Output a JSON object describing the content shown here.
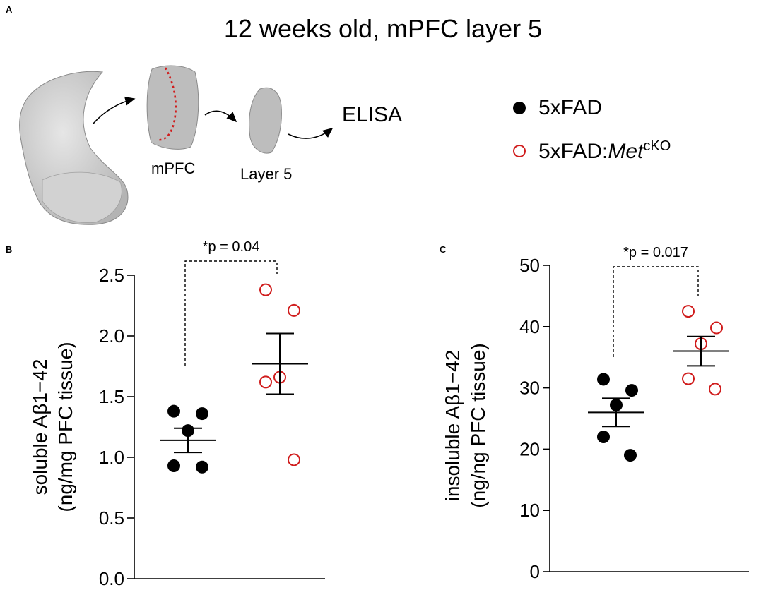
{
  "panel_a": {
    "letter": "A",
    "title": "12 weeks old, mPFC layer 5",
    "steps": [
      "mPFC",
      "Layer 5"
    ],
    "assay": "ELISA",
    "legend": [
      {
        "label": "5xFAD",
        "marker": "filled",
        "color": "#000000"
      },
      {
        "label_main": "5xFAD:",
        "label_italic": "Met",
        "label_sup": "cKO",
        "marker": "open",
        "color": "#d01c1c"
      }
    ]
  },
  "chart_data": [
    {
      "panel": "B",
      "type": "scatter",
      "ylabel_line1": "soluble Aβ1−42",
      "ylabel_line2": "(ng/mg PFC tissue)",
      "ylim": [
        0,
        2.5
      ],
      "yticks": [
        0.0,
        0.5,
        1.0,
        1.5,
        2.0,
        2.5
      ],
      "ytick_labels": [
        "0.0",
        "0.5",
        "1.0",
        "1.5",
        "2.0",
        "2.5"
      ],
      "annotation": "*p = 0.04",
      "series": [
        {
          "name": "5xFAD",
          "marker": "filled",
          "color": "#000000",
          "values": [
            1.38,
            1.36,
            1.22,
            0.93,
            0.92
          ],
          "mean": 1.14,
          "sem": 0.1
        },
        {
          "name": "5xFAD:MetcKO",
          "marker": "open",
          "color": "#d01c1c",
          "values": [
            2.38,
            2.21,
            1.66,
            1.62,
            0.98
          ],
          "mean": 1.77,
          "sem": 0.25
        }
      ]
    },
    {
      "panel": "C",
      "type": "scatter",
      "ylabel_line1": "insoluble Aβ1−42",
      "ylabel_line2": "(ng/ng PFC tissue)",
      "ylim": [
        0,
        50
      ],
      "yticks": [
        0,
        10,
        20,
        30,
        40,
        50
      ],
      "ytick_labels": [
        "0",
        "10",
        "20",
        "30",
        "40",
        "50"
      ],
      "annotation": "*p = 0.017",
      "series": [
        {
          "name": "5xFAD",
          "marker": "filled",
          "color": "#000000",
          "values": [
            31.4,
            29.6,
            27.2,
            22.0,
            19.0
          ],
          "mean": 26.0,
          "sem": 2.3
        },
        {
          "name": "5xFAD:MetcKO",
          "marker": "open",
          "color": "#d01c1c",
          "values": [
            42.5,
            39.8,
            37.2,
            31.5,
            29.8
          ],
          "mean": 36.0,
          "sem": 2.4
        }
      ]
    }
  ]
}
